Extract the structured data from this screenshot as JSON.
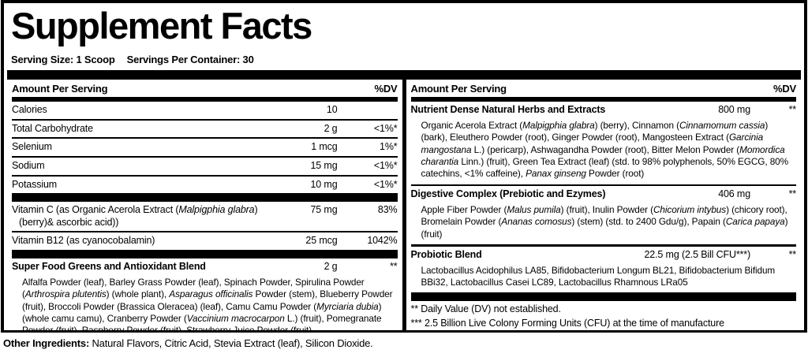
{
  "title": "Supplement Facts",
  "serving": {
    "size": "Serving Size: 1 Scoop",
    "per_container": "Servings Per Container: 30"
  },
  "header": {
    "amount_label": "Amount Per Serving",
    "dv_label": "%DV"
  },
  "left_panel": {
    "nutrients": [
      {
        "name": "Calories",
        "amount": "10",
        "dv": ""
      },
      {
        "name": "Total Carbohydrate",
        "amount": "2 g",
        "dv": "<1%*"
      },
      {
        "name": "Selenium",
        "amount": "1 mcg",
        "dv": "1%*"
      },
      {
        "name": "Sodium",
        "amount": "15 mg",
        "dv": "<1%*"
      },
      {
        "name": "Potassium",
        "amount": "10 mg",
        "dv": "<1%*"
      }
    ],
    "vitamins": [
      {
        "name": "Vitamin C (as Organic Acerola Extract («Malpigphia glabra») (berry)& ascorbic acid))",
        "amount": "75 mg",
        "dv": "83%"
      },
      {
        "name": "Vitamin B12 (as cyanocobalamin)",
        "amount": "25 mcg",
        "dv": "1042%"
      }
    ],
    "blend": {
      "name": "Super Food Greens and Antioxidant Blend",
      "amount": "2 g",
      "dv": "**",
      "ingredients": "Alfalfa Powder (leaf), Barley Grass Powder (leaf), Spinach Powder, Spirulina Powder («Arthrospira plutentis») (whole plant), «Asparagus officinalis» Powder (stem), Blueberry Powder (fruit), Broccoli Powder (Brassica Oleracea) (leaf), Camu Camu Powder («Myrciaria dubia») (whole camu camu), Cranberry Powder («Vaccinium macrocarpon» L.) (fruit), Pomegranate Powder (fruit), Raspberry Powder (fruit), Strawberry Juice Powder (fruit)"
    }
  },
  "right_panel": {
    "blends": [
      {
        "name": "Nutrient Dense Natural Herbs and Extracts",
        "amount": "800 mg",
        "dv": "**",
        "ingredients": "Organic Acerola Extract («Malpigphia glabra») (berry), Cinnamon («Cinnamomum cassia») (bark), Eleuthero Powder (root), Ginger Powder (root), Mangosteen Extract («Garcinia mangostana» L.) (pericarp), Ashwagandha Powder (root), Bitter Melon Powder («Momordica charantia» Linn.) (fruit), Green Tea Extract (leaf) (std. to 98% polyphenols, 50% EGCG, 80% catechins, <1% caffeine), «Panax ginseng» Powder (root)"
      },
      {
        "name": "Digestive Complex (Prebiotic and Ezymes)",
        "amount": "406 mg",
        "dv": "**",
        "ingredients": "Apple Fiber Powder («Malus pumila») (fruit), Inulin Powder («Chicorium intybus») (chicory root), Bromelain Powder («Ananas comosus») (stem) (std. to 2400 Gdu/g), Papain («Carica papaya») (fruit)"
      },
      {
        "name": "Probiotic Blend",
        "amount": "22.5 mg (2.5 Bill CFU***)",
        "dv": "**",
        "ingredients": "Lactobacillus Acidophilus LA85, Bifidobacterium Longum BL21, Bifidobacterium Bifidum BBi32, Lactobacillus Casei LC89, Lactobacillus Rhamnous LRa05"
      }
    ],
    "footnotes": [
      "** Daily Value (DV) not established.",
      "*** 2.5 Billion Live Colony Forming Units (CFU) at the time of manufacture"
    ]
  },
  "other_ingredients": {
    "label": "Other Ingredients:",
    "text": " Natural Flavors, Citric Acid, Stevia Extract (leaf), Silicon Dioxide."
  }
}
